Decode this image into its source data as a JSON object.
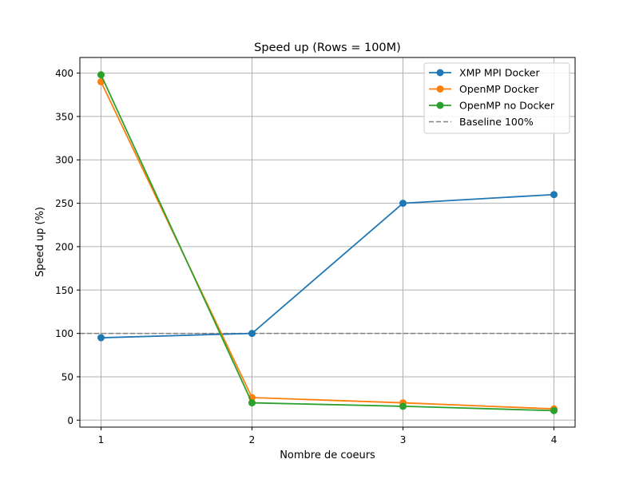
{
  "chart_data": {
    "type": "line",
    "title": "Speed up (Rows = 100M)",
    "xlabel": "Nombre de coeurs",
    "ylabel": "Speed up (%)",
    "x": [
      1,
      2,
      3,
      4
    ],
    "xticks": [
      "1",
      "2",
      "3",
      "4"
    ],
    "yticks": [
      0,
      50,
      100,
      150,
      200,
      250,
      300,
      350,
      400
    ],
    "xlim": [
      0.86,
      4.14
    ],
    "ylim": [
      -8,
      418
    ],
    "grid": true,
    "legend_position": "top-right",
    "series": [
      {
        "name": "XMP MPI Docker",
        "color": "#1f77b4",
        "values": [
          95,
          100,
          250,
          260
        ]
      },
      {
        "name": "OpenMP Docker",
        "color": "#ff7f0e",
        "values": [
          390,
          26,
          20,
          13
        ]
      },
      {
        "name": "OpenMP no Docker",
        "color": "#2ca02c",
        "values": [
          398,
          20,
          16,
          11
        ]
      }
    ],
    "baseline": {
      "name": "Baseline 100%",
      "value": 100,
      "color": "#808080",
      "style": "dashed"
    }
  }
}
